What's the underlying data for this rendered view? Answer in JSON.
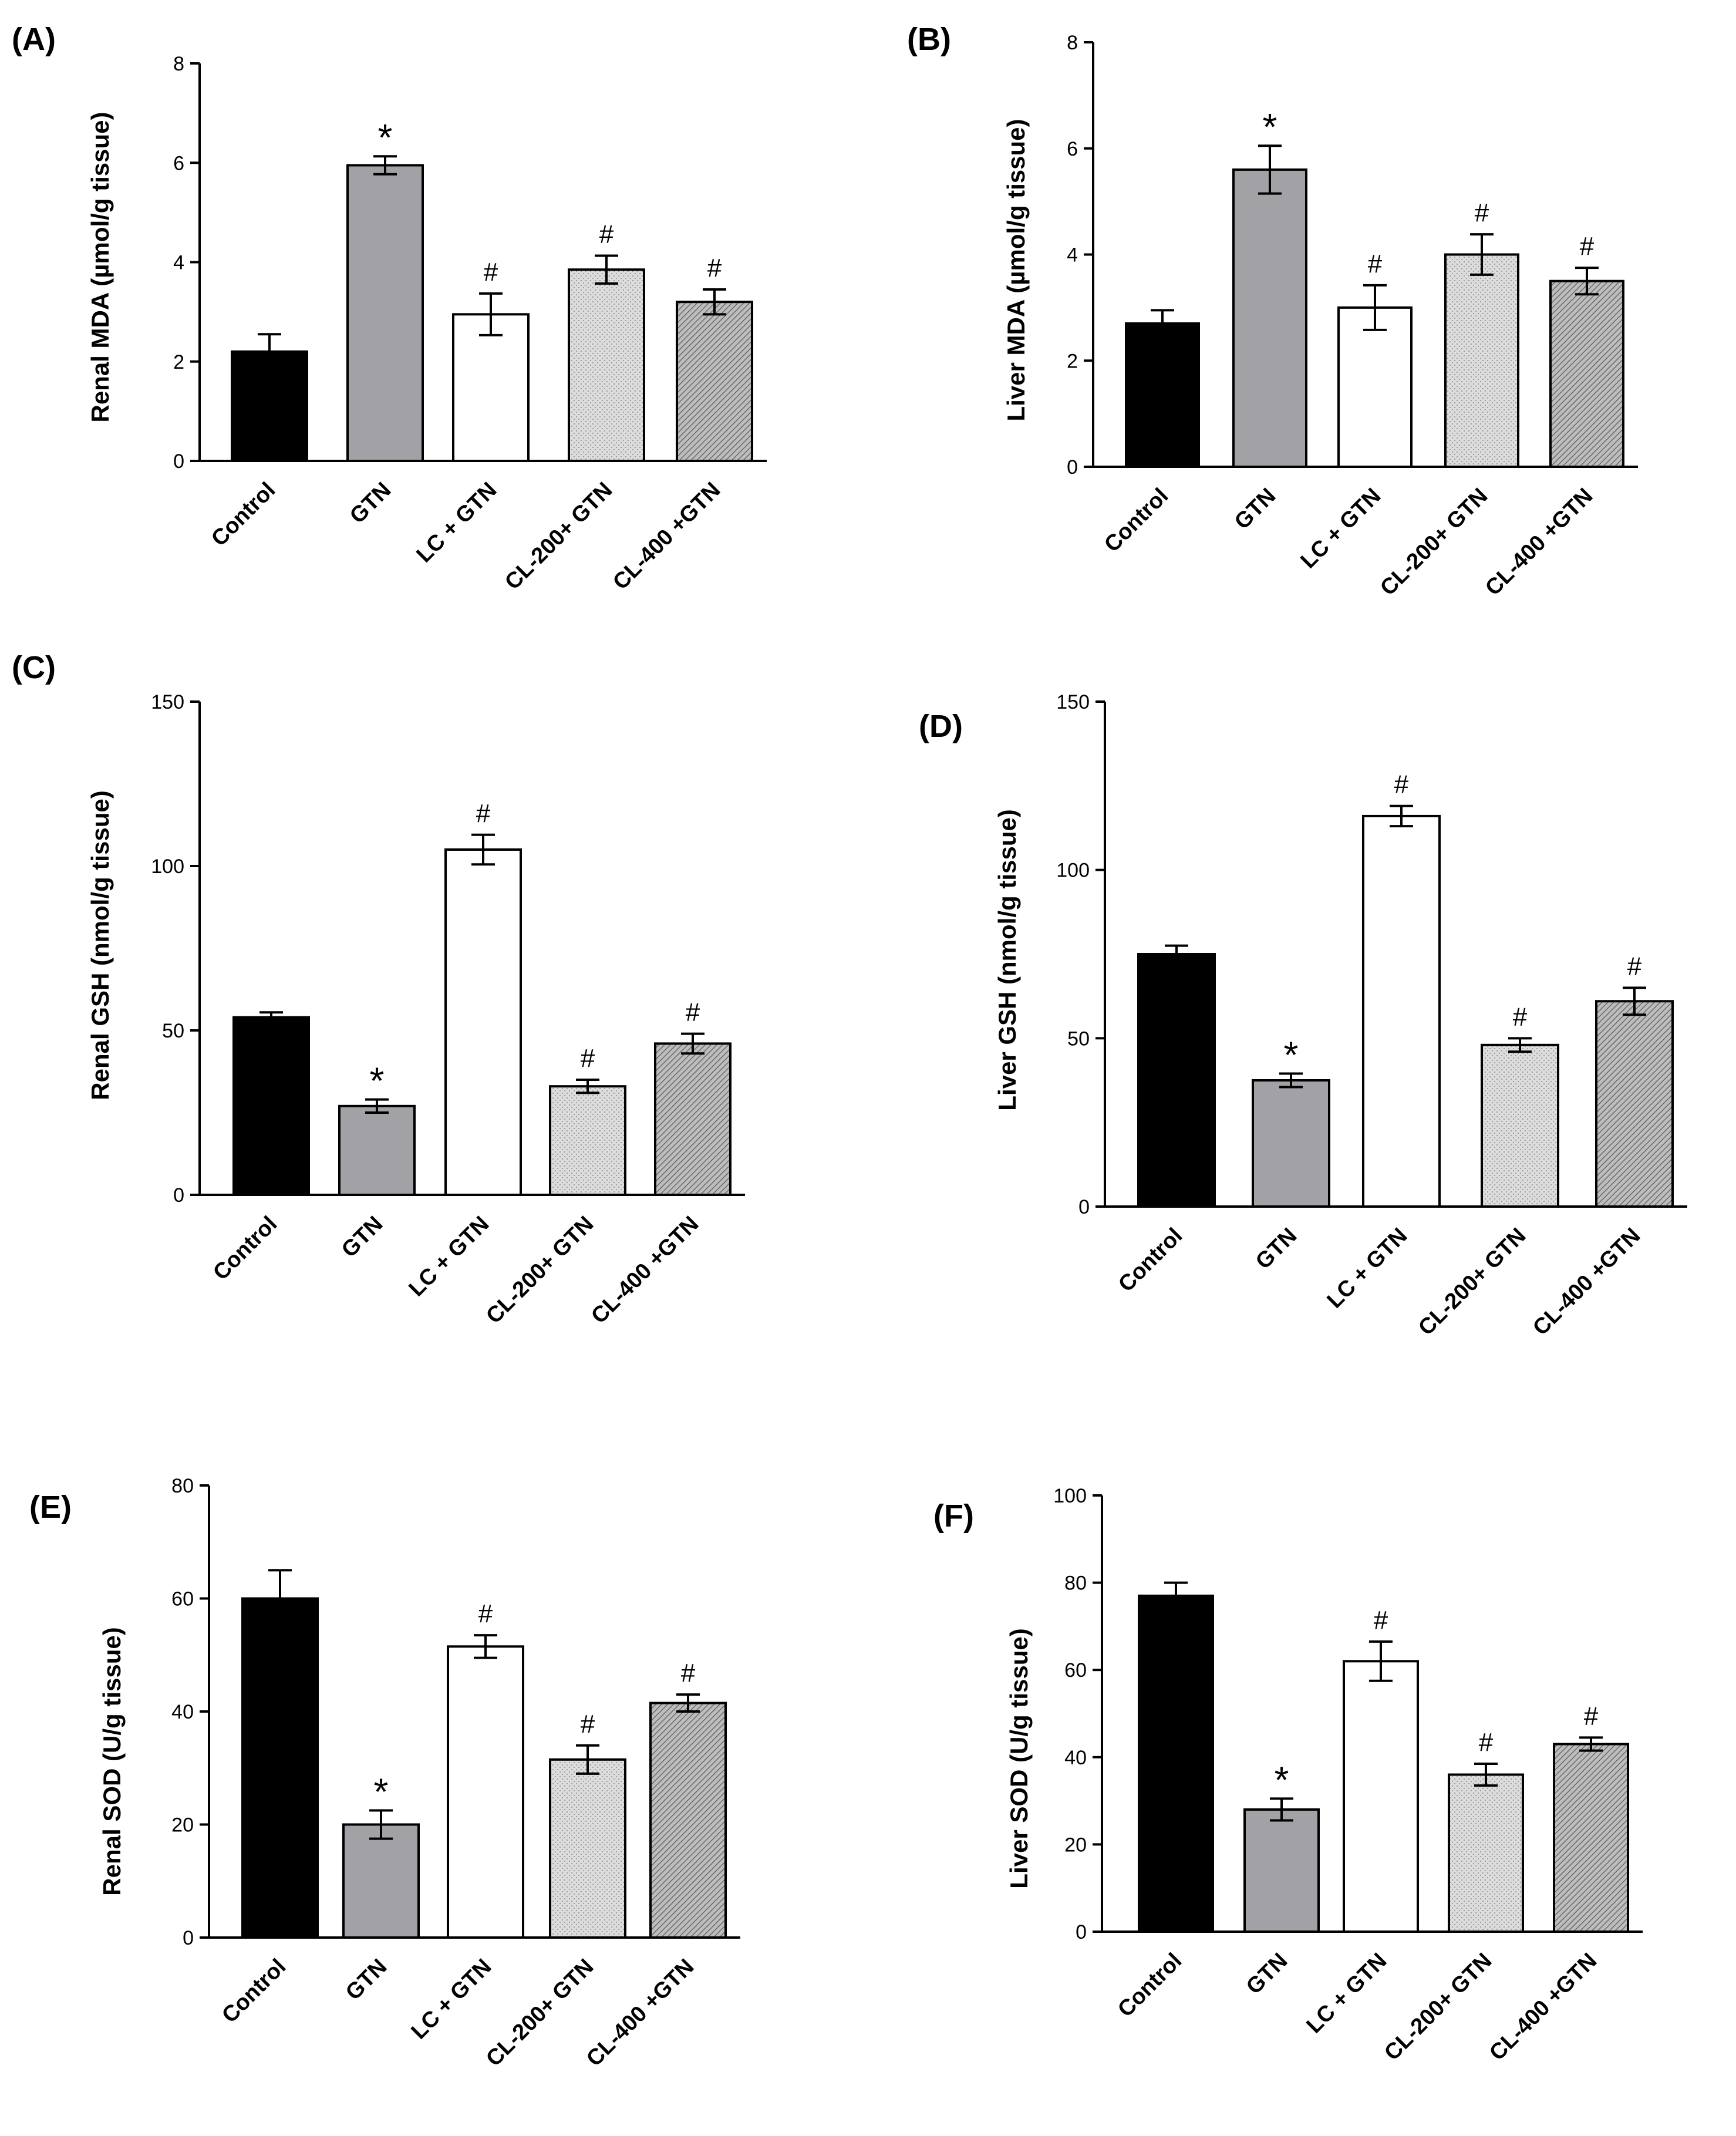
{
  "colors": {
    "control": "#000000",
    "gtn": "#a2a2a6",
    "lc_gtn": "#ffffff",
    "cl200": "#dcdcdc",
    "cl400": "#b4b4b4",
    "axis": "#000000"
  },
  "chart_data": [
    {
      "type": "bar",
      "panel_label": "(A)",
      "ylabel": "Renal MDA (µmol/g tissue)",
      "categories": [
        "Control",
        "GTN",
        "LC + GTN",
        "CL-200+ GTN",
        "CL-400 +GTN"
      ],
      "values": [
        2.2,
        5.95,
        2.95,
        3.85,
        3.2
      ],
      "errors": [
        0.35,
        0.18,
        0.42,
        0.28,
        0.25
      ],
      "significance": [
        "",
        "*",
        "#",
        "#",
        "#"
      ],
      "ylim": [
        0,
        8
      ],
      "yticks": [
        0,
        2,
        4,
        6,
        8
      ],
      "ytick_labels": [
        "0",
        "2",
        "4",
        "6",
        "8"
      ]
    },
    {
      "type": "bar",
      "panel_label": "(B)",
      "ylabel": "Liver MDA (µmol/g tissue)",
      "categories": [
        "Control",
        "GTN",
        "LC + GTN",
        "CL-200+ GTN",
        "CL-400 +GTN"
      ],
      "values": [
        2.7,
        5.6,
        3.0,
        4.0,
        3.5
      ],
      "errors": [
        0.25,
        0.45,
        0.42,
        0.38,
        0.25
      ],
      "significance": [
        "",
        "*",
        "#",
        "#",
        "#"
      ],
      "ylim": [
        0,
        8
      ],
      "yticks": [
        0,
        2,
        4,
        6,
        8
      ],
      "ytick_labels": [
        "0",
        "2",
        "4",
        "6",
        "8"
      ]
    },
    {
      "type": "bar",
      "panel_label": "(C)",
      "ylabel": "Renal GSH (nmol/g tissue)",
      "categories": [
        "Control",
        "GTN",
        "LC + GTN",
        "CL-200+ GTN",
        "CL-400 +GTN"
      ],
      "values": [
        54,
        27,
        105,
        33,
        46
      ],
      "errors": [
        1.5,
        2.0,
        4.5,
        2.0,
        3.0
      ],
      "significance": [
        "",
        "*",
        "#",
        "#",
        "#"
      ],
      "ylim": [
        0,
        150
      ],
      "yticks": [
        0,
        50,
        100,
        150
      ],
      "ytick_labels": [
        "0",
        "50",
        "100",
        "150"
      ]
    },
    {
      "type": "bar",
      "panel_label": "(D)",
      "ylabel": "Liver GSH (nmol/g tissue)",
      "categories": [
        "Control",
        "GTN",
        "LC + GTN",
        "CL-200+ GTN",
        "CL-400 +GTN"
      ],
      "values": [
        75,
        37.5,
        116,
        48,
        61
      ],
      "errors": [
        2.5,
        2.0,
        3.0,
        2.0,
        4.0
      ],
      "significance": [
        "",
        "*",
        "#",
        "#",
        "#"
      ],
      "ylim": [
        0,
        150
      ],
      "yticks": [
        0,
        50,
        100,
        150
      ],
      "ytick_labels": [
        "0",
        "50",
        "100",
        "150"
      ]
    },
    {
      "type": "bar",
      "panel_label": "(E)",
      "ylabel": "Renal SOD (U/g tissue)",
      "categories": [
        "Control",
        "GTN",
        "LC + GTN",
        "CL-200+ GTN",
        "CL-400 +GTN"
      ],
      "values": [
        60,
        20,
        51.5,
        31.5,
        41.5
      ],
      "errors": [
        5.0,
        2.5,
        2.0,
        2.5,
        1.5
      ],
      "significance": [
        "",
        "*",
        "#",
        "#",
        "#"
      ],
      "ylim": [
        0,
        80
      ],
      "yticks": [
        0,
        20,
        40,
        60,
        80
      ],
      "ytick_labels": [
        "0",
        "20",
        "40",
        "60",
        "80"
      ]
    },
    {
      "type": "bar",
      "panel_label": "(F)",
      "ylabel": "Liver SOD (U/g tissue)",
      "categories": [
        "Control",
        "GTN",
        "LC + GTN",
        "CL-200+ GTN",
        "CL-400 +GTN"
      ],
      "values": [
        77,
        28,
        62,
        36,
        43
      ],
      "errors": [
        3.0,
        2.5,
        4.5,
        2.5,
        1.5
      ],
      "significance": [
        "",
        "*",
        "#",
        "#",
        "#"
      ],
      "ylim": [
        0,
        100
      ],
      "yticks": [
        0,
        20,
        40,
        60,
        80,
        100
      ],
      "ytick_labels": [
        "0",
        "20",
        "40",
        "60",
        "80",
        "100"
      ]
    }
  ]
}
